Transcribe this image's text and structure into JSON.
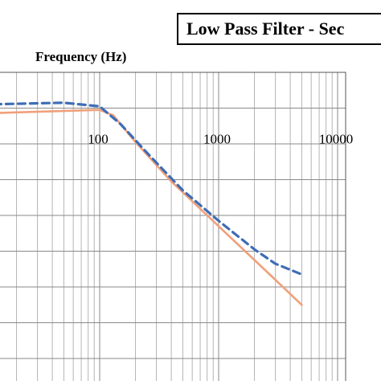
{
  "chart_data": {
    "type": "line",
    "title": "Low Pass Filter - Sec",
    "xlabel": "Frequency (Hz)",
    "ylabel": "",
    "x_scale": "log",
    "xlim": [
      1,
      10000
    ],
    "x_tick_labels": [
      "100",
      "1000",
      "10000"
    ],
    "grid": true,
    "series": [
      {
        "style": "solid",
        "color": "#f0a07a",
        "points": [
          {
            "x": 1,
            "y": -0.5
          },
          {
            "x": 100,
            "y": -0.1
          },
          {
            "x": 130,
            "y": -0.4
          },
          {
            "x": 200,
            "y": -1.9
          },
          {
            "x": 400,
            "y": -4.1
          },
          {
            "x": 1000,
            "y": -6.6
          },
          {
            "x": 2500,
            "y": -9.1
          },
          {
            "x": 5000,
            "y": -11.0
          }
        ]
      },
      {
        "style": "dashed",
        "color": "#3e6db5",
        "points": [
          {
            "x": 1,
            "y": -0.4
          },
          {
            "x": 10,
            "y": 0.2
          },
          {
            "x": 50,
            "y": 0.3
          },
          {
            "x": 100,
            "y": 0.1
          },
          {
            "x": 150,
            "y": -0.9
          },
          {
            "x": 250,
            "y": -2.5
          },
          {
            "x": 500,
            "y": -4.6
          },
          {
            "x": 1000,
            "y": -6.3
          },
          {
            "x": 2000,
            "y": -7.9
          },
          {
            "x": 3000,
            "y": -8.7
          },
          {
            "x": 5000,
            "y": -9.3
          }
        ]
      }
    ]
  }
}
